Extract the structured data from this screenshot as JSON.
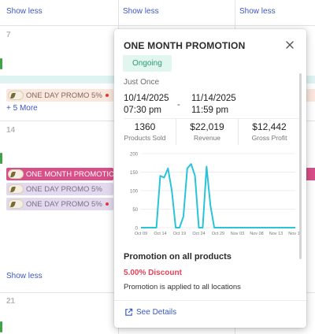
{
  "calendar": {
    "show_less_top": [
      "Show less",
      "Show less",
      "Show less"
    ],
    "show_less_bottom": "Show less",
    "week1_day": "7",
    "week2_day": "14",
    "week3_day": "21",
    "week1_events": [
      {
        "label": "ONE DAY PROMO 5%",
        "has_dot": true
      }
    ],
    "week1_more": "+ 5 More",
    "week2_events": [
      {
        "label": "ONE MONTH PROMOTION",
        "style": "month"
      },
      {
        "label": "ONE DAY PROMO 5%",
        "style": "day"
      },
      {
        "label": "ONE DAY PROMO 5%",
        "style": "day",
        "has_dot": true
      }
    ]
  },
  "popup": {
    "title": "ONE MONTH PROMOTION",
    "status": "Ongoing",
    "frequency": "Just Once",
    "start_date": "10/14/2025",
    "start_time": "07:30 pm",
    "date_separator": "-",
    "end_date": "11/14/2025",
    "end_time": "11:59 pm",
    "stats": [
      {
        "value": "1360",
        "label": "Products Sold"
      },
      {
        "value": "$22,019",
        "label": "Revenue"
      },
      {
        "value": "$12,442",
        "label": "Gross Profit"
      }
    ],
    "promo_heading": "Promotion on all products",
    "discount": "5.00% Discount",
    "applies_to": "Promotion is applied to all locations",
    "details_link": "See Details",
    "colors": {
      "accent": "#3b57c4",
      "line": "#29c4d9",
      "discount": "#e8405a",
      "badge_bg": "#e1f6ef",
      "badge_text": "#2b9b77",
      "month_event": "#d94f88"
    }
  },
  "chart_data": {
    "type": "line",
    "ylim": [
      0,
      200
    ],
    "yticks": [
      "0",
      "50",
      "100",
      "150",
      "200"
    ],
    "xtick_labels": [
      "Oct 09",
      "Oct 14",
      "Oct 19",
      "Oct 24",
      "Oct 29",
      "Nov 03",
      "Nov 08",
      "Nov 13",
      "Nov 18"
    ],
    "x": [
      "Oct 09",
      "Oct 10",
      "Oct 11",
      "Oct 12",
      "Oct 13",
      "Oct 14",
      "Oct 15",
      "Oct 16",
      "Oct 17",
      "Oct 18",
      "Oct 19",
      "Oct 20",
      "Oct 21",
      "Oct 22",
      "Oct 23",
      "Oct 24",
      "Oct 25",
      "Oct 26",
      "Oct 27",
      "Oct 28",
      "Oct 29",
      "Oct 30",
      "Oct 31",
      "Nov 01",
      "Nov 02",
      "Nov 03",
      "Nov 04",
      "Nov 05",
      "Nov 06",
      "Nov 07",
      "Nov 08",
      "Nov 09",
      "Nov 10",
      "Nov 11",
      "Nov 12",
      "Nov 13",
      "Nov 14",
      "Nov 15",
      "Nov 16",
      "Nov 17",
      "Nov 18"
    ],
    "values": [
      0,
      0,
      0,
      0,
      0,
      140,
      135,
      160,
      100,
      0,
      0,
      30,
      160,
      172,
      140,
      0,
      0,
      165,
      60,
      0,
      0,
      0,
      0,
      0,
      0,
      0,
      0,
      0,
      0,
      0,
      0,
      0,
      0,
      0,
      0,
      0,
      0,
      0,
      0,
      0,
      0
    ],
    "grid": true,
    "title": "",
    "xlabel": "",
    "ylabel": ""
  }
}
